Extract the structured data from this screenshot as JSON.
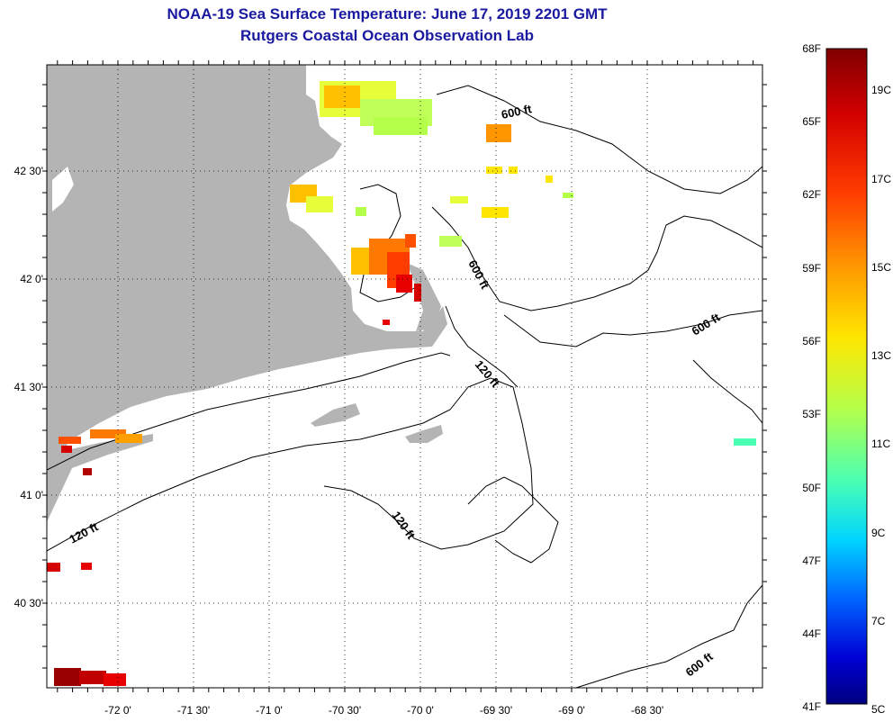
{
  "title": "NOAA-19 Sea Surface Temperature:  June 17, 2019 2201 GMT",
  "subtitle": "Rutgers Coastal Ocean Observation Lab",
  "lon_labels": [
    "-72 0'",
    "-71 30'",
    "-71 0'",
    "-70 30'",
    "-70 0'",
    "-69 30'",
    "-69 0'",
    "-68 30'"
  ],
  "lat_labels": [
    "42 30'",
    "42 0'",
    "41 30'",
    "41 0'",
    "40 30'"
  ],
  "colorbar": {
    "f_labels": [
      "68F",
      "65F",
      "62F",
      "59F",
      "56F",
      "53F",
      "50F",
      "47F",
      "44F",
      "41F"
    ],
    "c_labels": [
      "19C",
      "17C",
      "15C",
      "13C",
      "11C",
      "9C",
      "7C",
      "5C"
    ]
  },
  "contour_labels": [
    "600 ft",
    "600 ft",
    "600 ft",
    "600 ft",
    "120 ft",
    "120 ft",
    "120 ft"
  ],
  "colors": {
    "land": "#b4b4b4",
    "title": "#1a1aa0",
    "scale": [
      "#7f0000",
      "#d40000",
      "#ff3c00",
      "#ff9600",
      "#ffe600",
      "#b4ff4a",
      "#4affb4",
      "#00d4ff",
      "#0064ff",
      "#0000d4",
      "#00007f"
    ]
  }
}
